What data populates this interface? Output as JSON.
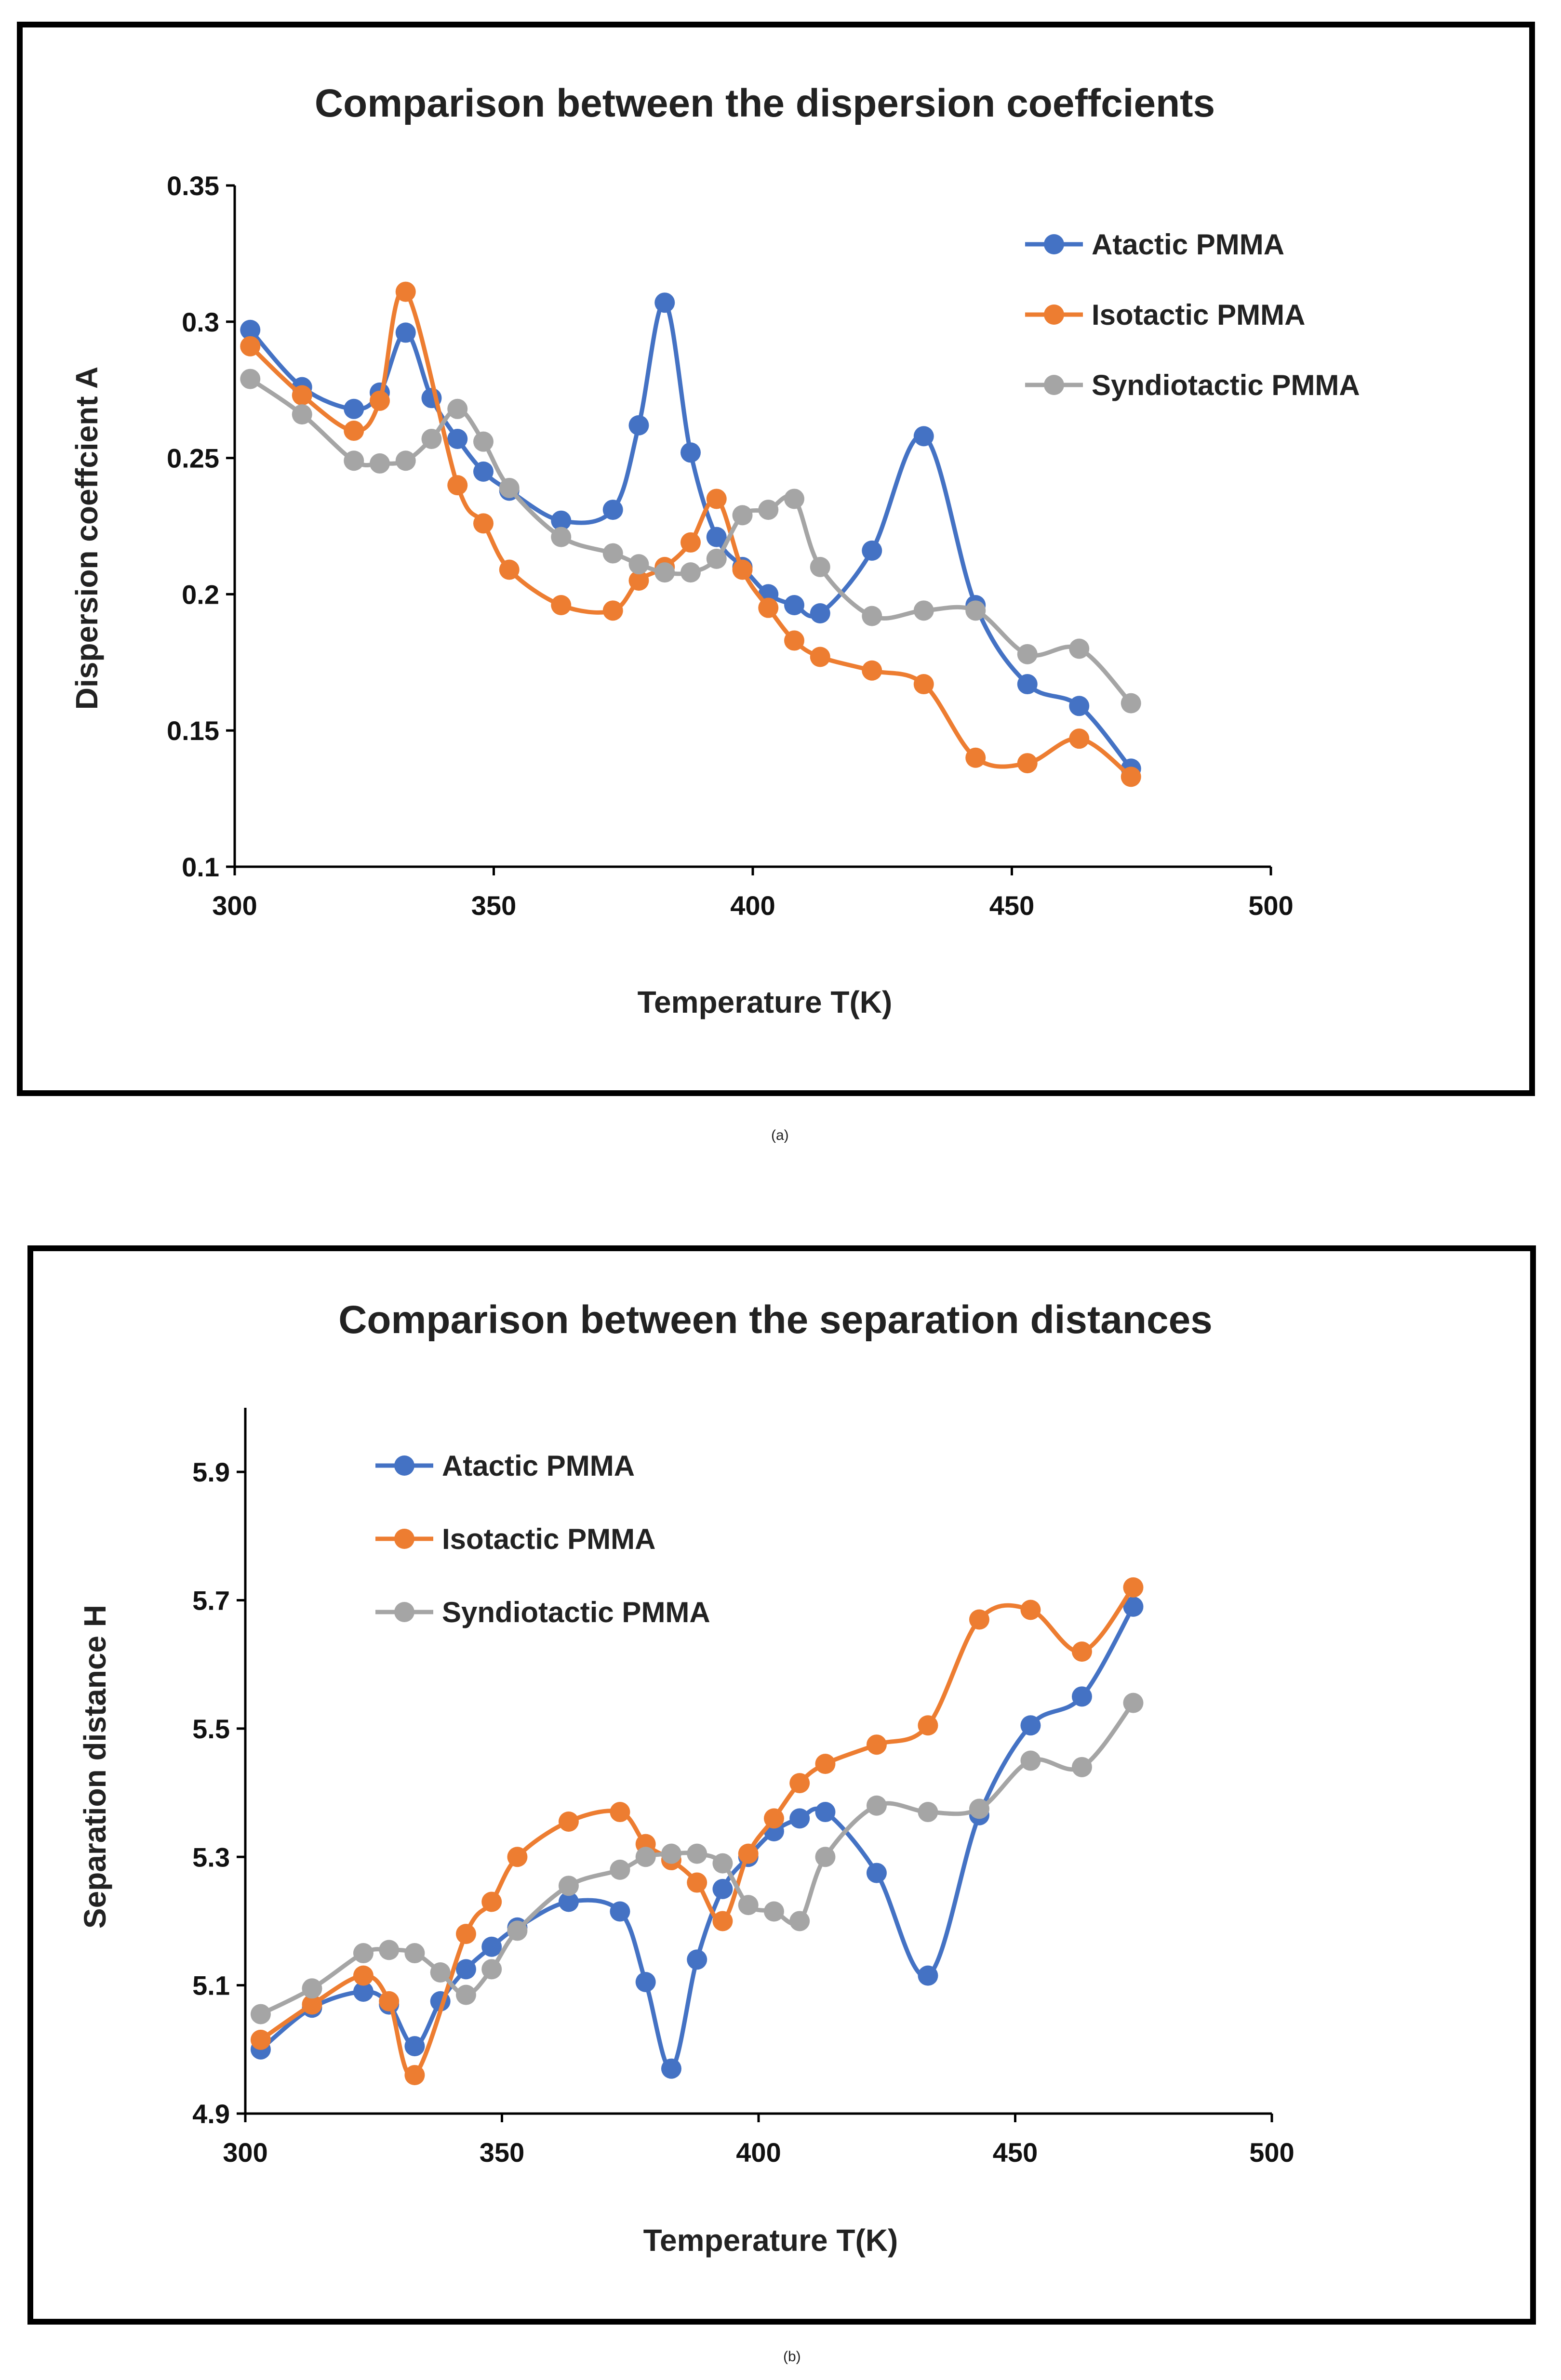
{
  "chart_data": [
    {
      "type": "line",
      "title": "Comparison between the dispersion coeffcients",
      "xlabel": "Temperature T(K)",
      "ylabel": "Dispersion coeffcient A",
      "xlim": [
        300,
        500
      ],
      "ylim": [
        0.1,
        0.35
      ],
      "xticks": [
        300,
        350,
        400,
        450,
        500
      ],
      "xtick_labels": [
        "300",
        "350",
        "400",
        "450",
        "500"
      ],
      "yticks": [
        0.1,
        0.15,
        0.2,
        0.25,
        0.3,
        0.35
      ],
      "ytick_labels": [
        "0.1",
        "0.15",
        "0.2",
        "0.25",
        "0.3",
        "0.35"
      ],
      "legend_position": "top-right",
      "caption": "(a)",
      "series": [
        {
          "name": "Atactic PMMA",
          "color": "#4472C4",
          "x": [
            303,
            313,
            323,
            328,
            333,
            338,
            343,
            348,
            353,
            363,
            373,
            378,
            383,
            388,
            393,
            398,
            403,
            408,
            413,
            423,
            433,
            443,
            453,
            463,
            473
          ],
          "y": [
            0.297,
            0.276,
            0.268,
            0.274,
            0.296,
            0.272,
            0.257,
            0.245,
            0.238,
            0.227,
            0.231,
            0.262,
            0.307,
            0.252,
            0.221,
            0.21,
            0.2,
            0.196,
            0.193,
            0.216,
            0.258,
            0.196,
            0.167,
            0.159,
            0.136
          ]
        },
        {
          "name": "Isotactic PMMA",
          "color": "#ED7D31",
          "x": [
            303,
            313,
            323,
            328,
            333,
            343,
            348,
            353,
            363,
            373,
            378,
            383,
            388,
            393,
            398,
            403,
            408,
            413,
            423,
            433,
            443,
            453,
            463,
            473
          ],
          "y": [
            0.291,
            0.273,
            0.26,
            0.271,
            0.311,
            0.24,
            0.226,
            0.209,
            0.196,
            0.194,
            0.205,
            0.21,
            0.219,
            0.235,
            0.209,
            0.195,
            0.183,
            0.177,
            0.172,
            0.167,
            0.14,
            0.138,
            0.147,
            0.133
          ]
        },
        {
          "name": "Syndiotactic PMMA",
          "color": "#A5A5A5",
          "x": [
            303,
            313,
            323,
            328,
            333,
            338,
            343,
            348,
            353,
            363,
            373,
            378,
            383,
            388,
            393,
            398,
            403,
            408,
            413,
            423,
            433,
            443,
            453,
            463,
            473
          ],
          "y": [
            0.279,
            0.266,
            0.249,
            0.248,
            0.249,
            0.257,
            0.268,
            0.256,
            0.239,
            0.221,
            0.215,
            0.211,
            0.208,
            0.208,
            0.213,
            0.229,
            0.231,
            0.235,
            0.21,
            0.192,
            0.194,
            0.194,
            0.178,
            0.18,
            0.16
          ]
        }
      ]
    },
    {
      "type": "line",
      "title": "Comparison between the separation distances",
      "xlabel": "Temperature T(K)",
      "ylabel": "Separation distance H",
      "xlim": [
        300,
        500
      ],
      "ylim": [
        4.9,
        6.0
      ],
      "xticks": [
        300,
        350,
        400,
        450,
        500
      ],
      "xtick_labels": [
        "300",
        "350",
        "400",
        "450",
        "500"
      ],
      "yticks": [
        4.9,
        5.1,
        5.3,
        5.5,
        5.7,
        5.9
      ],
      "ytick_labels": [
        "4.9",
        "5.1",
        "5.3",
        "5.5",
        "5.7",
        "5.9"
      ],
      "legend_position": "top-left",
      "caption": "(b)",
      "series": [
        {
          "name": "Atactic PMMA",
          "color": "#4472C4",
          "x": [
            303,
            313,
            323,
            328,
            333,
            338,
            343,
            348,
            353,
            363,
            373,
            378,
            383,
            388,
            393,
            398,
            403,
            408,
            413,
            423,
            433,
            443,
            453,
            463,
            473
          ],
          "y": [
            5.0,
            5.065,
            5.09,
            5.07,
            5.005,
            5.075,
            5.125,
            5.16,
            5.19,
            5.23,
            5.215,
            5.105,
            4.97,
            5.14,
            5.25,
            5.3,
            5.34,
            5.36,
            5.37,
            5.275,
            5.115,
            5.365,
            5.505,
            5.55,
            5.69
          ]
        },
        {
          "name": "Isotactic PMMA",
          "color": "#ED7D31",
          "x": [
            303,
            313,
            323,
            328,
            333,
            343,
            348,
            353,
            363,
            373,
            378,
            383,
            388,
            393,
            398,
            403,
            408,
            413,
            423,
            433,
            443,
            453,
            463,
            473
          ],
          "y": [
            5.015,
            5.07,
            5.115,
            5.075,
            4.96,
            5.18,
            5.23,
            5.3,
            5.355,
            5.37,
            5.32,
            5.295,
            5.26,
            5.2,
            5.305,
            5.36,
            5.415,
            5.445,
            5.475,
            5.505,
            5.67,
            5.685,
            5.62,
            5.72
          ]
        },
        {
          "name": "Syndiotactic PMMA",
          "color": "#A5A5A5",
          "x": [
            303,
            313,
            323,
            328,
            333,
            338,
            343,
            348,
            353,
            363,
            373,
            378,
            383,
            388,
            393,
            398,
            403,
            408,
            413,
            423,
            433,
            443,
            453,
            463,
            473
          ],
          "y": [
            5.055,
            5.095,
            5.15,
            5.155,
            5.15,
            5.12,
            5.085,
            5.125,
            5.185,
            5.255,
            5.28,
            5.3,
            5.305,
            5.305,
            5.29,
            5.225,
            5.215,
            5.2,
            5.3,
            5.38,
            5.37,
            5.375,
            5.45,
            5.44,
            5.54
          ]
        }
      ]
    }
  ]
}
